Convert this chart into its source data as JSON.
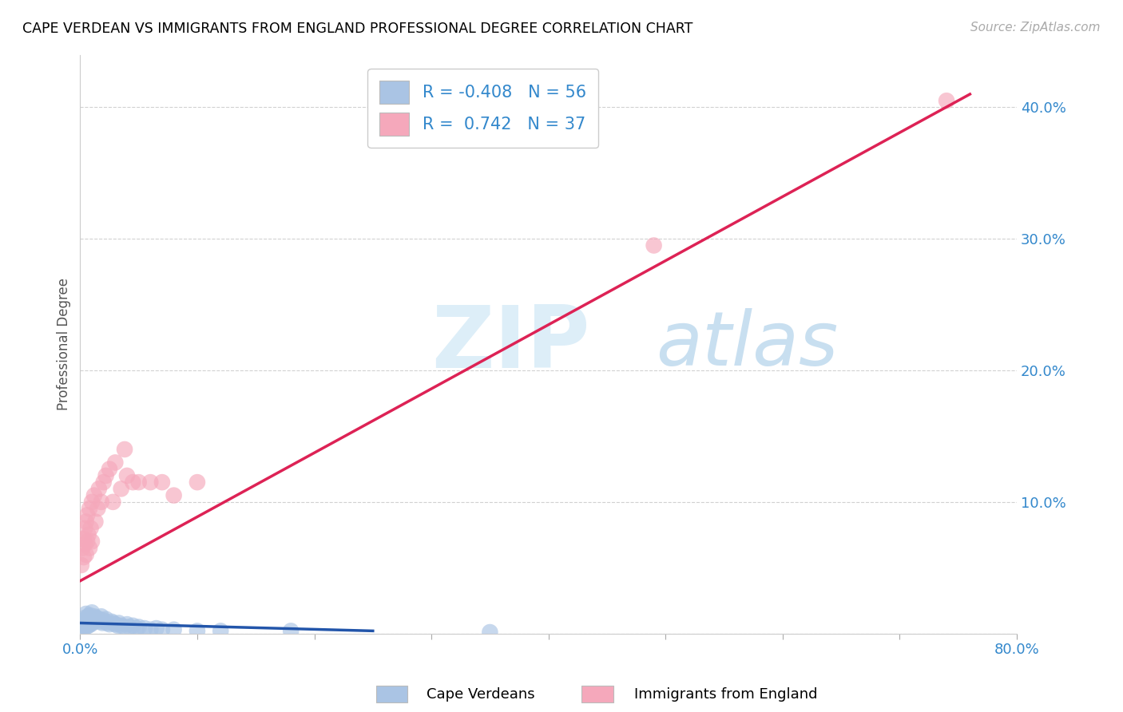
{
  "title": "CAPE VERDEAN VS IMMIGRANTS FROM ENGLAND PROFESSIONAL DEGREE CORRELATION CHART",
  "source": "Source: ZipAtlas.com",
  "ylabel": "Professional Degree",
  "yticks": [
    0.0,
    0.1,
    0.2,
    0.3,
    0.4
  ],
  "ytick_labels": [
    "",
    "10.0%",
    "20.0%",
    "30.0%",
    "40.0%"
  ],
  "xlim": [
    0.0,
    0.8
  ],
  "ylim": [
    0.0,
    0.44
  ],
  "r_blue": -0.408,
  "n_blue": 56,
  "r_pink": 0.742,
  "n_pink": 37,
  "blue_color": "#aac4e4",
  "pink_color": "#f5a8bb",
  "blue_line_color": "#2255aa",
  "pink_line_color": "#dd2255",
  "legend_label_blue": "Cape Verdeans",
  "legend_label_pink": "Immigrants from England",
  "watermark_zip": "ZIP",
  "watermark_atlas": "atlas",
  "blue_scatter_x": [
    0.001,
    0.002,
    0.002,
    0.003,
    0.003,
    0.004,
    0.004,
    0.005,
    0.005,
    0.005,
    0.006,
    0.006,
    0.007,
    0.007,
    0.008,
    0.008,
    0.009,
    0.009,
    0.01,
    0.01,
    0.011,
    0.012,
    0.012,
    0.013,
    0.014,
    0.015,
    0.016,
    0.017,
    0.018,
    0.019,
    0.02,
    0.021,
    0.022,
    0.023,
    0.025,
    0.027,
    0.028,
    0.03,
    0.032,
    0.033,
    0.035,
    0.038,
    0.04,
    0.042,
    0.045,
    0.048,
    0.05,
    0.055,
    0.06,
    0.065,
    0.07,
    0.08,
    0.1,
    0.12,
    0.18,
    0.35
  ],
  "blue_scatter_y": [
    0.005,
    0.006,
    0.01,
    0.004,
    0.008,
    0.006,
    0.012,
    0.005,
    0.009,
    0.015,
    0.007,
    0.011,
    0.006,
    0.013,
    0.008,
    0.014,
    0.007,
    0.01,
    0.008,
    0.016,
    0.01,
    0.009,
    0.013,
    0.011,
    0.012,
    0.01,
    0.011,
    0.009,
    0.013,
    0.008,
    0.01,
    0.009,
    0.011,
    0.008,
    0.007,
    0.009,
    0.008,
    0.007,
    0.006,
    0.008,
    0.006,
    0.005,
    0.007,
    0.005,
    0.006,
    0.004,
    0.005,
    0.004,
    0.003,
    0.004,
    0.003,
    0.003,
    0.002,
    0.002,
    0.002,
    0.001
  ],
  "pink_scatter_x": [
    0.001,
    0.002,
    0.003,
    0.003,
    0.004,
    0.004,
    0.005,
    0.005,
    0.006,
    0.006,
    0.007,
    0.008,
    0.008,
    0.009,
    0.01,
    0.01,
    0.012,
    0.013,
    0.015,
    0.016,
    0.018,
    0.02,
    0.022,
    0.025,
    0.028,
    0.03,
    0.035,
    0.038,
    0.04,
    0.045,
    0.05,
    0.06,
    0.07,
    0.08,
    0.1,
    0.49,
    0.74
  ],
  "pink_scatter_y": [
    0.052,
    0.065,
    0.058,
    0.072,
    0.068,
    0.08,
    0.06,
    0.085,
    0.07,
    0.09,
    0.075,
    0.065,
    0.095,
    0.08,
    0.07,
    0.1,
    0.105,
    0.085,
    0.095,
    0.11,
    0.1,
    0.115,
    0.12,
    0.125,
    0.1,
    0.13,
    0.11,
    0.14,
    0.12,
    0.115,
    0.115,
    0.115,
    0.115,
    0.105,
    0.115,
    0.295,
    0.405
  ],
  "blue_trend_x": [
    0.0,
    0.25
  ],
  "blue_trend_y": [
    0.008,
    0.002
  ],
  "pink_trend_x": [
    0.0,
    0.76
  ],
  "pink_trend_y": [
    0.04,
    0.41
  ]
}
